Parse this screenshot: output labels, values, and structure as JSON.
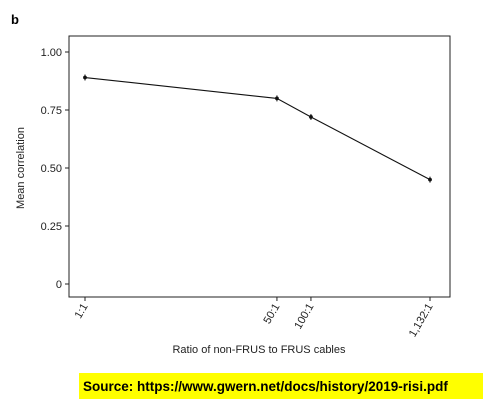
{
  "panel_label": "b",
  "source_text": "Source: https://www.gwern.net/docs/history/2019-risi.pdf",
  "colors": {
    "line": "#111111",
    "axis": "#222222",
    "source_highlight": "#ffff00"
  },
  "chart_data": {
    "type": "line",
    "title": "",
    "xlabel": "Ratio of non-FRUS to FRUS cables",
    "ylabel": "Mean correlation",
    "x_scale": "log",
    "x_values": [
      1,
      50,
      100,
      1132
    ],
    "x_tick_labels": [
      "1:1",
      "50:1",
      "100:1",
      "1,132:1"
    ],
    "y_ticks": [
      0,
      0.25,
      0.5,
      0.75,
      1.0
    ],
    "y_tick_labels": [
      "0",
      "0.25",
      "0.50",
      "0.75",
      "1.00"
    ],
    "ylim": [
      0,
      1.0
    ],
    "grid": false,
    "series": [
      {
        "values": [
          0.89,
          0.8,
          0.72,
          0.45
        ]
      }
    ]
  }
}
